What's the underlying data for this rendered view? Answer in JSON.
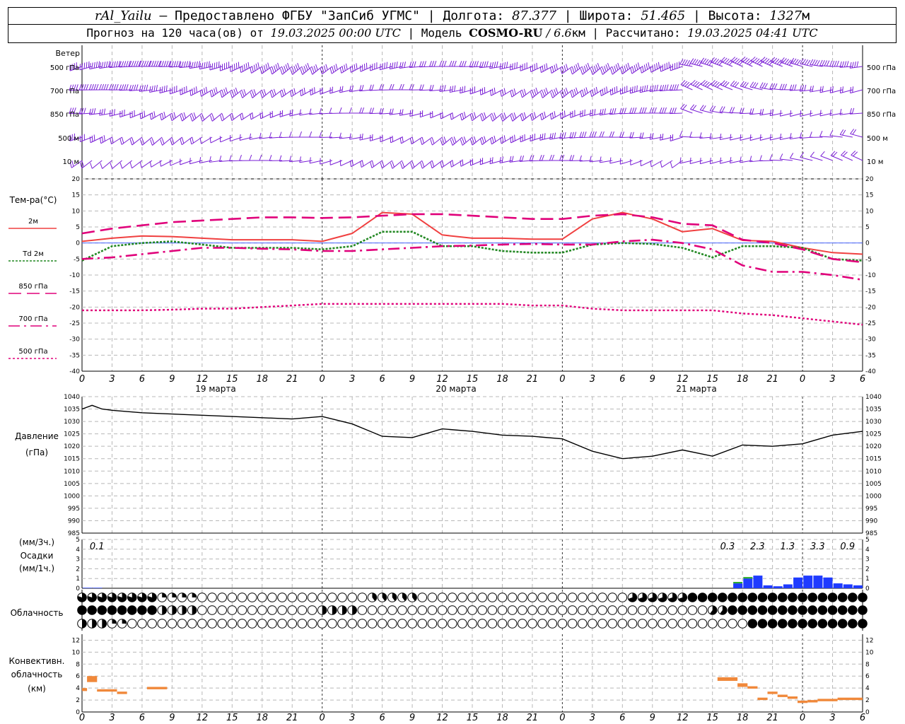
{
  "header": {
    "station": "rAl_Yailu",
    "provider": " – Предоставлено ФГБУ \"ЗапСиб УГМС\" | Долгота: ",
    "lon": "87.377",
    "lat_label": " | Широта: ",
    "lat": "51.465",
    "alt_label": " | Высота: ",
    "alt": "1327",
    "alt_unit": "м",
    "forecast_label": "Прогноз на 120 часа(ов) от ",
    "forecast_from": "19.03.2025 00:00 UTC",
    "model_label": "  | Модель ",
    "model": "COSMO-RU",
    "model_res": " / 6.6",
    "model_res_unit": "км",
    "calc_label": " | Рассчитано: ",
    "calc_time": "19.03.2025 04:41 UTC"
  },
  "panels": {
    "wind": {
      "title": "Ветер",
      "levels": [
        "500 гПа",
        "700 гПа",
        "850 гПа",
        "500  м",
        "10   м"
      ]
    },
    "temp": {
      "title": "Тем-ра(°С)",
      "legend": [
        {
          "label": "2м",
          "color": "#f04040"
        },
        {
          "label": "Td  2м",
          "color": "#228822"
        },
        {
          "label": "850 гПа",
          "color": "#e0007a"
        },
        {
          "label": "700 гПа",
          "color": "#e0007a"
        },
        {
          "label": "500 гПа",
          "color": "#e0007a"
        }
      ]
    },
    "pressure": {
      "title": "Давление",
      "unit": "(гПа)"
    },
    "precip": {
      "unit_top": "(мм/3ч.)",
      "title": "Осадки",
      "unit_bottom": "(мм/1ч.)"
    },
    "clouds": {
      "title": "Облачность"
    },
    "conv": {
      "line1": "Конвективн.",
      "line2": "облачность",
      "line3": "(км)"
    }
  },
  "time_axis": {
    "hour_labels": [
      "0",
      "3",
      "6",
      "9",
      "12",
      "15",
      "18",
      "21",
      "0",
      "3",
      "6",
      "9",
      "12",
      "15",
      "18",
      "21",
      "0",
      "3",
      "6",
      "9",
      "12",
      "15",
      "18",
      "21",
      "0",
      "3",
      "6"
    ],
    "day_labels": [
      "19 марта",
      "20 марта",
      "21 марта"
    ]
  },
  "chart_data": [
    {
      "type": "line",
      "title": "Тем-ра(°С)",
      "x_unit": "hours from 19.03.2025 00:00 UTC",
      "ylim": [
        -40,
        20
      ],
      "yticks": [
        -40,
        -35,
        -30,
        -25,
        -20,
        -15,
        -10,
        -5,
        0,
        5,
        10,
        15,
        20
      ],
      "x": [
        0,
        3,
        6,
        9,
        12,
        15,
        18,
        21,
        24,
        27,
        30,
        33,
        36,
        39,
        42,
        45,
        48,
        51,
        54,
        57,
        60,
        63,
        66,
        69,
        72,
        75,
        78
      ],
      "series": [
        {
          "name": "2м",
          "color": "#f04040",
          "values": [
            0.5,
            1.5,
            2.2,
            2.0,
            1.5,
            1.0,
            1.0,
            1.0,
            0.5,
            3.0,
            9.5,
            9.0,
            2.5,
            1.5,
            1.5,
            1.2,
            1.2,
            7.5,
            9.5,
            7.5,
            3.5,
            4.5,
            0.8,
            0.5,
            -1.5,
            -3.0,
            -3.5
          ]
        },
        {
          "name": "Td  2м",
          "color": "#228822",
          "values": [
            -5.5,
            -1.0,
            0.0,
            0.5,
            -0.5,
            -1.5,
            -1.5,
            -1.5,
            -2.0,
            -1.0,
            3.5,
            3.5,
            -1.0,
            -1.0,
            -2.5,
            -3.0,
            -3.0,
            -0.5,
            0.0,
            -0.3,
            -1.5,
            -4.5,
            -1.0,
            -1.0,
            -1.5,
            -5.0,
            -5.5
          ]
        },
        {
          "name": "850 гПа",
          "color": "#e0007a",
          "values": [
            3.0,
            4.5,
            5.5,
            6.5,
            7.0,
            7.5,
            8.0,
            8.0,
            7.8,
            8.0,
            8.5,
            9.0,
            9.0,
            8.5,
            8.0,
            7.5,
            7.5,
            8.5,
            9.0,
            8.0,
            6.0,
            5.5,
            1.0,
            0.0,
            -2.0,
            -5.0,
            -6.0
          ]
        },
        {
          "name": "700 гПа",
          "color": "#e0007a",
          "values": [
            -5.0,
            -4.5,
            -3.5,
            -2.5,
            -1.5,
            -1.5,
            -1.8,
            -2.0,
            -2.5,
            -2.5,
            -2.0,
            -1.5,
            -1.0,
            -0.8,
            -0.5,
            -0.3,
            -0.5,
            -0.5,
            0.5,
            1.0,
            0.0,
            -2.0,
            -7.0,
            -9.0,
            -9.0,
            -10.0,
            -11.5
          ]
        },
        {
          "name": "500 гПа",
          "color": "#e0007a",
          "values": [
            -21.0,
            -21.0,
            -21.0,
            -20.8,
            -20.5,
            -20.5,
            -20.0,
            -19.5,
            -19.0,
            -19.0,
            -19.0,
            -19.0,
            -19.0,
            -19.0,
            -19.0,
            -19.5,
            -19.5,
            -20.5,
            -21.0,
            -21.0,
            -21.0,
            -21.0,
            -22.0,
            -22.5,
            -23.5,
            -24.5,
            -25.5
          ]
        }
      ]
    },
    {
      "type": "line",
      "title": "Давление",
      "ylabel": "(гПа)",
      "ylim": [
        985,
        1040
      ],
      "yticks": [
        985,
        990,
        995,
        1000,
        1005,
        1010,
        1015,
        1020,
        1025,
        1030,
        1035,
        1040
      ],
      "x": [
        0,
        1,
        2,
        3,
        6,
        9,
        12,
        15,
        18,
        21,
        24,
        27,
        30,
        33,
        36,
        39,
        42,
        45,
        48,
        51,
        54,
        57,
        60,
        63,
        66,
        69,
        72,
        75,
        78
      ],
      "values": [
        1035,
        1036.5,
        1035,
        1034.5,
        1033.5,
        1033,
        1032.5,
        1032,
        1031.5,
        1031,
        1032,
        1029,
        1024,
        1023.5,
        1027,
        1026,
        1024.5,
        1024,
        1023,
        1018,
        1015,
        1016,
        1018.5,
        1016,
        1020.5,
        1020,
        1021,
        1024.5,
        1026
      ]
    },
    {
      "type": "bar",
      "title": "Осадки",
      "ylim": [
        0,
        5
      ],
      "yticks": [
        0,
        1,
        2,
        3,
        4,
        5
      ],
      "x": [
        1,
        2,
        66,
        67,
        68,
        69,
        70,
        71,
        72,
        73,
        74,
        75,
        76,
        77,
        78
      ],
      "values": [
        0.05,
        0.05,
        0.5,
        1.0,
        1.3,
        0.3,
        0.2,
        0.4,
        1.1,
        1.3,
        1.3,
        1.1,
        0.5,
        0.4,
        0.3
      ],
      "labels_3h": [
        {
          "x": 1.5,
          "text": "0.1"
        },
        {
          "x": 64.5,
          "text": "0.3"
        },
        {
          "x": 67.5,
          "text": "2.3"
        },
        {
          "x": 70.5,
          "text": "1.3"
        },
        {
          "x": 73.5,
          "text": "3.3"
        },
        {
          "x": 76.5,
          "text": "0.9"
        }
      ]
    },
    {
      "type": "bar",
      "title": "Конвективн. облачность (км)",
      "ylim": [
        0,
        13
      ],
      "yticks": [
        0,
        2,
        4,
        6,
        8,
        10,
        12
      ],
      "segments": [
        {
          "x0": 0,
          "x1": 0.5,
          "bottom": 3.5,
          "top": 4.0
        },
        {
          "x0": 0.5,
          "x1": 1.5,
          "bottom": 5.0,
          "top": 6.0
        },
        {
          "x0": 1.5,
          "x1": 3.5,
          "bottom": 3.4,
          "top": 3.8
        },
        {
          "x0": 3.5,
          "x1": 4.5,
          "bottom": 3.0,
          "top": 3.4
        },
        {
          "x0": 6.5,
          "x1": 8.5,
          "bottom": 3.8,
          "top": 4.2
        },
        {
          "x0": 63.5,
          "x1": 65.5,
          "bottom": 5.2,
          "top": 5.8
        },
        {
          "x0": 65.5,
          "x1": 66.5,
          "bottom": 4.2,
          "top": 4.8
        },
        {
          "x0": 66.5,
          "x1": 67.5,
          "bottom": 3.9,
          "top": 4.3
        },
        {
          "x0": 67.5,
          "x1": 68.5,
          "bottom": 2.0,
          "top": 2.4
        },
        {
          "x0": 68.5,
          "x1": 69.5,
          "bottom": 3.0,
          "top": 3.4
        },
        {
          "x0": 69.5,
          "x1": 70.5,
          "bottom": 2.5,
          "top": 2.9
        },
        {
          "x0": 70.5,
          "x1": 71.5,
          "bottom": 2.2,
          "top": 2.6
        },
        {
          "x0": 71.5,
          "x1": 72.5,
          "bottom": 1.5,
          "top": 1.9
        },
        {
          "x0": 72.5,
          "x1": 73.5,
          "bottom": 1.6,
          "top": 2.0
        },
        {
          "x0": 73.5,
          "x1": 75.5,
          "bottom": 1.8,
          "top": 2.2
        },
        {
          "x0": 75.5,
          "x1": 78,
          "bottom": 2.0,
          "top": 2.4
        }
      ]
    }
  ],
  "colors": {
    "wind": "#7a1fd6",
    "pressure": "#000000",
    "precip": "#1f3bff",
    "precip_green": "#22aa22",
    "conv": "#f0883a",
    "zero_line": "#3050ff"
  }
}
